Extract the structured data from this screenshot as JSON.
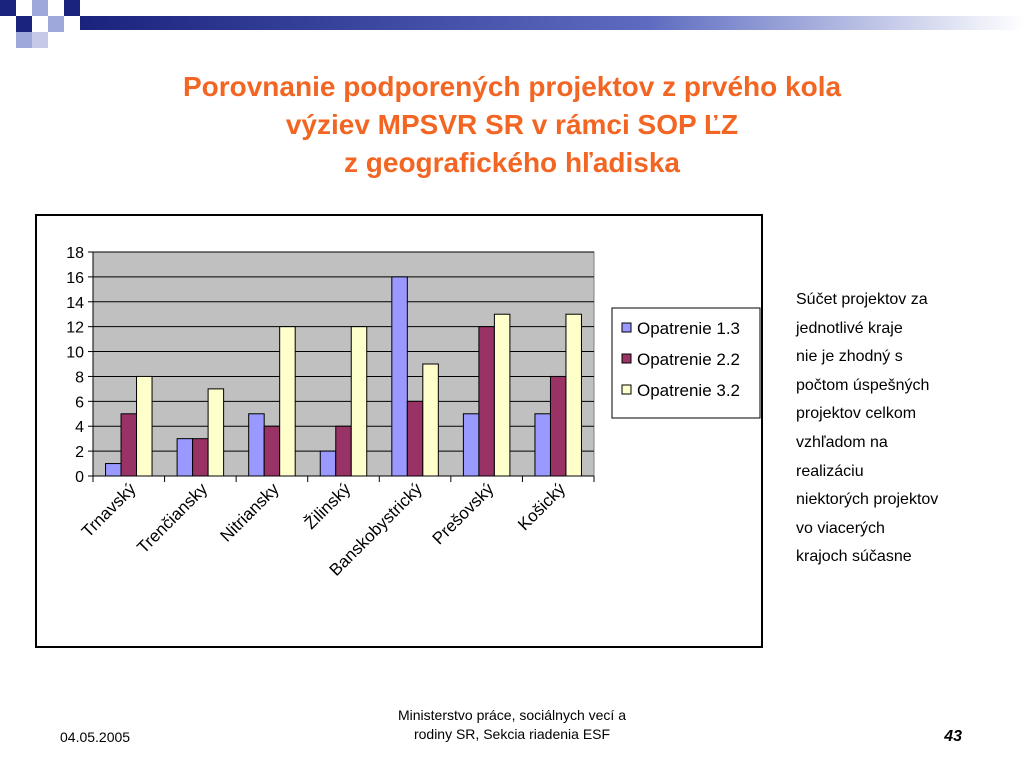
{
  "slide": {
    "title_lines": [
      "Porovnanie podporených projektov z prvého kola",
      "výziev MPSVR SR v rámci SOP ĽZ",
      "z geografického hľadiska"
    ],
    "note_lines": [
      "Súčet projektov za",
      "jednotlivé kraje",
      "nie je zhodný s",
      "počtom úspešných",
      "projektov celkom",
      "vzhľadom na",
      "realizáciu",
      "niektorých projektov",
      "vo viacerých",
      "krajoch súčasne"
    ],
    "footer": {
      "date": "04.05.2005",
      "org_line1": "Ministerstvo práce, sociálnych vecí a",
      "org_line2": "rodiny SR, Sekcia riadenia ESF",
      "page_number": "43"
    },
    "colors": {
      "title": "#f26522",
      "deco_navy": "#1a237e",
      "deco_light": "#9fa8da"
    }
  },
  "chart_data": {
    "type": "bar",
    "categories": [
      "Trnavský",
      "Trenčiansky",
      "Nitriansky",
      "Žilinský",
      "Banskobystrický",
      "Prešovský",
      "Košický"
    ],
    "series": [
      {
        "name": "Opatrenie 1.3",
        "values": [
          1,
          3,
          5,
          2,
          16,
          5,
          5
        ],
        "color": "#9999ff"
      },
      {
        "name": "Opatrenie 2.2",
        "values": [
          5,
          3,
          4,
          4,
          6,
          12,
          8
        ],
        "color": "#993366"
      },
      {
        "name": "Opatrenie 3.2",
        "values": [
          8,
          7,
          12,
          12,
          9,
          13,
          13
        ],
        "color": "#ffffcc"
      }
    ],
    "yticks": [
      "0",
      "2",
      "4",
      "6",
      "8",
      "10",
      "12",
      "14",
      "16",
      "18"
    ],
    "ylim": [
      0,
      18
    ],
    "grid": true,
    "plot_background": "#c0c0c0",
    "legend_position": "right"
  }
}
